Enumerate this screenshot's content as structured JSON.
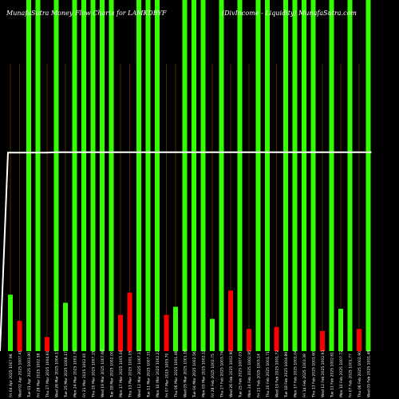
{
  "header": {
    "left": "MunafaSutra Money Flow Charts for LAMKDBYF",
    "right": "(DivIncome - Liquidity) MunafaSutra.com"
  },
  "colors": {
    "background": "#000000",
    "up": "#33ff00",
    "down": "#ff0000",
    "guide": "#7a4a00",
    "line": "#ffffff"
  },
  "chart_data": {
    "type": "bar",
    "ylim": [
      0,
      1
    ],
    "dates": [
      "Fri 04 Apr 2025",
      "Wed 02 Apr 2025",
      "Tue 01 Apr 2025",
      "Fri 28 Mar 2025",
      "Thu 27 Mar 2025",
      "Wed 26 Mar 2025",
      "Tue 25 Mar 2025",
      "Mon 24 Mar 2025",
      "Fri 21 Mar 2025",
      "Thu 20 Mar 2025",
      "Wed 19 Mar 2025",
      "Tue 18 Mar 2025",
      "Mon 17 Mar 2025",
      "Thu 13 Mar 2025",
      "Wed 12 Mar 2025",
      "Tue 11 Mar 2025",
      "Mon 10 Mar 2025",
      "Fri 07 Mar 2025",
      "Thu 06 Mar 2025",
      "Wed 05 Mar 2025",
      "Tue 04 Mar 2025",
      "Mon 03 Mar 2025",
      "Fri 28 Feb 2025",
      "Thu 27 Feb 2025",
      "Wed 26 Feb 2025",
      "Tue 25 Feb 2025",
      "Mon 24 Feb 2025",
      "Fri 21 Feb 2025",
      "Thu 20 Feb 2025",
      "Wed 19 Feb 2025",
      "Tue 18 Feb 2025",
      "Mon 17 Feb 2025",
      "Fri 14 Feb 2025",
      "Thu 13 Feb 2025",
      "Wed 12 Feb 2025",
      "Tue 11 Feb 2025",
      "Mon 10 Feb 2025",
      "Fri 07 Feb 2025",
      "Thu 06 Feb 2025",
      "Wed 05 Feb 2025"
    ],
    "prices": [
      "1007.96",
      "1007.41",
      "1003.90",
      "1002.58",
      "1004.61",
      "1004.17",
      "1008.17",
      "1002.70",
      "1002.00",
      "1007.15",
      "1007.68",
      "1002.00",
      "1005.00",
      "1001.05",
      "1007.11",
      "1007.31",
      "1002.22",
      "1005.70",
      "1001.46",
      "1001.16",
      "1002.56",
      "1002.12",
      "1002.75",
      "1003.74",
      "1002.90",
      "1007.03",
      "1002.95",
      "1003.14",
      "1001.71",
      "1001.72",
      "1004.89",
      "1001.04",
      "1003.39",
      "1001.60",
      "1002.93",
      "1002.61",
      "1007.72",
      "1001.77",
      "1002.90",
      "1001.48"
    ],
    "bars": [
      {
        "dir": "up",
        "value": 0.28
      },
      {
        "dir": "down",
        "value": 0.15
      },
      {
        "dir": "up",
        "value": 1.0
      },
      {
        "dir": "up",
        "value": 1.0
      },
      {
        "dir": "down",
        "value": 0.07
      },
      {
        "dir": "up",
        "value": 1.0
      },
      {
        "dir": "up",
        "value": 0.24
      },
      {
        "dir": "up",
        "value": 1.0
      },
      {
        "dir": "up",
        "value": 1.0
      },
      {
        "dir": "up",
        "value": 1.0
      },
      {
        "dir": "up",
        "value": 1.0
      },
      {
        "dir": "up",
        "value": 1.0
      },
      {
        "dir": "down",
        "value": 0.18
      },
      {
        "dir": "down",
        "value": 0.29
      },
      {
        "dir": "up",
        "value": 1.0
      },
      {
        "dir": "up",
        "value": 1.0
      },
      {
        "dir": "up",
        "value": 1.0
      },
      {
        "dir": "down",
        "value": 0.18
      },
      {
        "dir": "up",
        "value": 0.22
      },
      {
        "dir": "up",
        "value": 1.0
      },
      {
        "dir": "up",
        "value": 1.0
      },
      {
        "dir": "up",
        "value": 1.0
      },
      {
        "dir": "up",
        "value": 0.16
      },
      {
        "dir": "up",
        "value": 1.0
      },
      {
        "dir": "down",
        "value": 0.3
      },
      {
        "dir": "up",
        "value": 1.0
      },
      {
        "dir": "down",
        "value": 0.11
      },
      {
        "dir": "up",
        "value": 1.0
      },
      {
        "dir": "up",
        "value": 1.0
      },
      {
        "dir": "down",
        "value": 0.12
      },
      {
        "dir": "up",
        "value": 1.0
      },
      {
        "dir": "up",
        "value": 1.0
      },
      {
        "dir": "up",
        "value": 1.0
      },
      {
        "dir": "up",
        "value": 1.0
      },
      {
        "dir": "down",
        "value": 0.1
      },
      {
        "dir": "up",
        "value": 1.0
      },
      {
        "dir": "up",
        "value": 0.21
      },
      {
        "dir": "up",
        "value": 1.0
      },
      {
        "dir": "down",
        "value": 0.11
      },
      {
        "dir": "up",
        "value": 1.0
      }
    ],
    "line": [
      0.0,
      0.985,
      0.985,
      0.985,
      0.985,
      0.985,
      0.987,
      0.987,
      0.987,
      0.987,
      0.987,
      0.987,
      0.987,
      0.987,
      0.987,
      0.987,
      0.987,
      0.987,
      0.987,
      0.987,
      0.987,
      0.987,
      0.987,
      0.987,
      0.987,
      0.987,
      0.987,
      0.987,
      0.987,
      0.987,
      0.987,
      0.987,
      0.987,
      0.987,
      0.987,
      0.987,
      0.987,
      0.987,
      0.987,
      0.987,
      0.987
    ]
  }
}
